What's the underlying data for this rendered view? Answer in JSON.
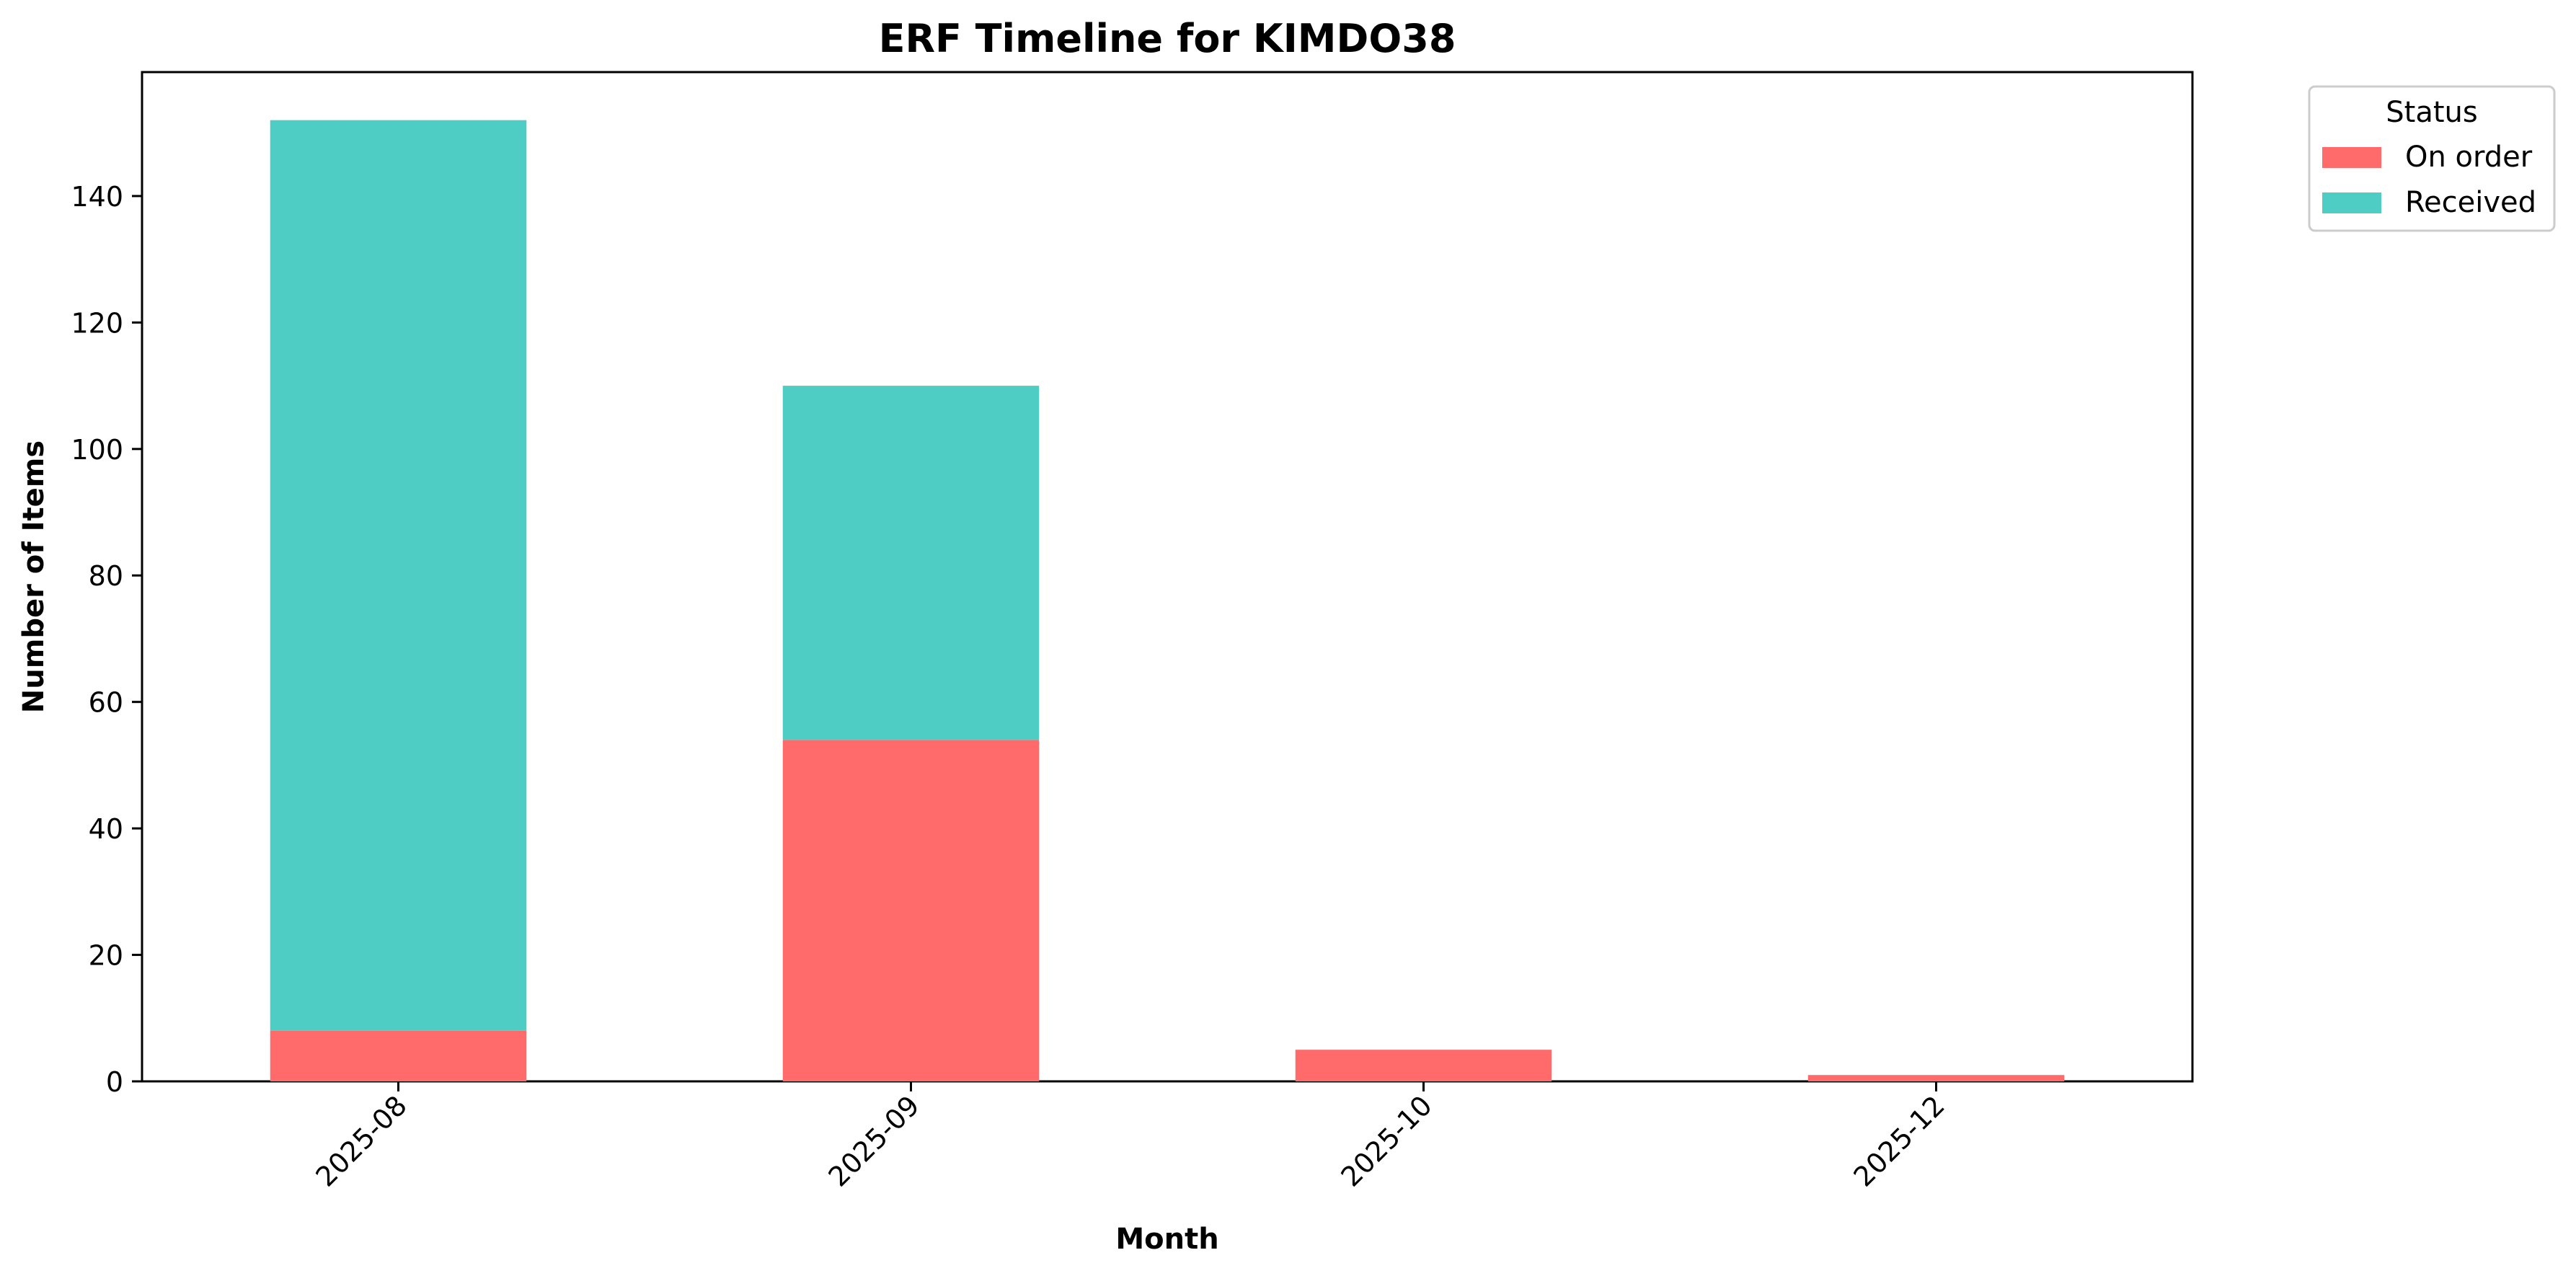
{
  "chart_data": {
    "type": "bar",
    "stacked": true,
    "title": "ERF Timeline for KIMDO38",
    "xlabel": "Month",
    "ylabel": "Number of Items",
    "categories": [
      "2025-08",
      "2025-09",
      "2025-10",
      "2025-12"
    ],
    "series": [
      {
        "name": "On order",
        "color": "#ff6b6b",
        "values": [
          8,
          54,
          5,
          1
        ]
      },
      {
        "name": "Received",
        "color": "#4ecdc4",
        "values": [
          144,
          56,
          0,
          0
        ]
      }
    ],
    "ylim": [
      0,
      159.6
    ],
    "yticks": [
      0,
      20,
      40,
      60,
      80,
      100,
      120,
      140
    ],
    "grid": false,
    "legend": {
      "title": "Status",
      "placement": "outside-top-right"
    }
  }
}
